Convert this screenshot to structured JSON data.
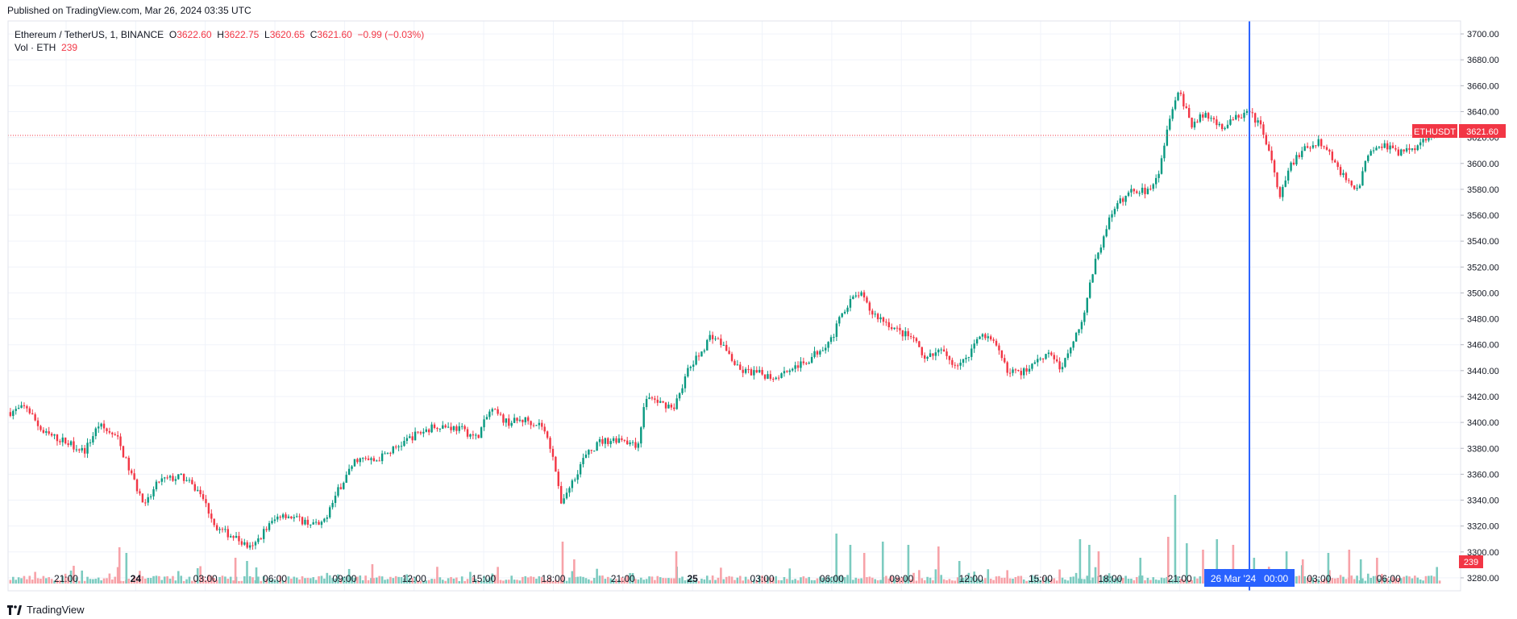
{
  "published": "Published on TradingView.com, Mar 26, 2024 03:35 UTC",
  "brand": "TradingView",
  "legend": {
    "symbol": "Ethereum / TetherUS, 1, BINANCE",
    "o_label": "O",
    "o": "3622.60",
    "h_label": "H",
    "h": "3622.75",
    "l_label": "L",
    "l": "3620.65",
    "c_label": "C",
    "c": "3621.60",
    "change": "−0.99 (−0.03%)",
    "vol_label": "Vol · ETH",
    "vol": "239"
  },
  "price_tag": {
    "symbol": "ETHUSDT",
    "value": "3621.60"
  },
  "volume_tag": "239",
  "crosshair_label": "26 Mar '24   00:00",
  "colors": {
    "up": "#089981",
    "down": "#f23645",
    "vol_up": "#7ccbc0",
    "vol_down": "#f7a2a8",
    "crosshair": "#2962ff",
    "grid": "#f0f3fa"
  },
  "chart_data": {
    "type": "candlestick",
    "symbol": "ETHUSDT",
    "interval": "1 minute",
    "ylim": [
      3270,
      3710
    ],
    "y_ticks": [
      "3280.00",
      "3300.00",
      "3320.00",
      "3340.00",
      "3360.00",
      "3380.00",
      "3400.00",
      "3420.00",
      "3440.00",
      "3460.00",
      "3480.00",
      "3500.00",
      "3520.00",
      "3540.00",
      "3560.00",
      "3580.00",
      "3600.00",
      "3620.00",
      "3640.00",
      "3660.00",
      "3680.00",
      "3700.00"
    ],
    "x_ticks": [
      {
        "label": "21:00",
        "t": 2
      },
      {
        "label": "24",
        "t": 5
      },
      {
        "label": "03:00",
        "t": 8
      },
      {
        "label": "06:00",
        "t": 11
      },
      {
        "label": "09:00",
        "t": 14
      },
      {
        "label": "12:00",
        "t": 17
      },
      {
        "label": "15:00",
        "t": 20
      },
      {
        "label": "18:00",
        "t": 23
      },
      {
        "label": "21:00",
        "t": 26
      },
      {
        "label": "25",
        "t": 29
      },
      {
        "label": "03:00",
        "t": 32
      },
      {
        "label": "06:00",
        "t": 35
      },
      {
        "label": "09:00",
        "t": 38
      },
      {
        "label": "12:00",
        "t": 41
      },
      {
        "label": "15:00",
        "t": 44
      },
      {
        "label": "18:00",
        "t": 47
      },
      {
        "label": "21:00",
        "t": 50
      },
      {
        "label": "03:00",
        "t": 56
      },
      {
        "label": "06:00",
        "t": 59
      }
    ],
    "bold_ticks": [
      "24",
      "25"
    ],
    "xlim": [
      -0.5,
      62.1
    ],
    "last_price": 3621.6,
    "crosshair_t": 53.0,
    "price_path": [
      [
        -0.4,
        3408
      ],
      [
        0.3,
        3412
      ],
      [
        1,
        3392
      ],
      [
        2,
        3385
      ],
      [
        2.8,
        3378
      ],
      [
        3.4,
        3398
      ],
      [
        4.2,
        3388
      ],
      [
        4.8,
        3360
      ],
      [
        5.4,
        3335
      ],
      [
        6,
        3355
      ],
      [
        7,
        3358
      ],
      [
        7.8,
        3345
      ],
      [
        8.5,
        3318
      ],
      [
        9.2,
        3312
      ],
      [
        10,
        3302
      ],
      [
        10.6,
        3318
      ],
      [
        11.3,
        3330
      ],
      [
        12,
        3325
      ],
      [
        13,
        3320
      ],
      [
        13.8,
        3350
      ],
      [
        14.5,
        3372
      ],
      [
        15.3,
        3370
      ],
      [
        16,
        3378
      ],
      [
        17,
        3390
      ],
      [
        18,
        3398
      ],
      [
        19,
        3395
      ],
      [
        19.7,
        3388
      ],
      [
        20.3,
        3410
      ],
      [
        21,
        3400
      ],
      [
        21.8,
        3402
      ],
      [
        22.5,
        3398
      ],
      [
        23,
        3375
      ],
      [
        23.3,
        3338
      ],
      [
        23.7,
        3350
      ],
      [
        24.3,
        3372
      ],
      [
        25,
        3385
      ],
      [
        26,
        3388
      ],
      [
        26.6,
        3380
      ],
      [
        27,
        3420
      ],
      [
        27.6,
        3415
      ],
      [
        28.2,
        3412
      ],
      [
        28.8,
        3440
      ],
      [
        29.4,
        3455
      ],
      [
        29.8,
        3468
      ],
      [
        30.3,
        3460
      ],
      [
        31,
        3440
      ],
      [
        31.8,
        3438
      ],
      [
        32.5,
        3435
      ],
      [
        33.2,
        3442
      ],
      [
        33.8,
        3445
      ],
      [
        34.4,
        3455
      ],
      [
        35,
        3465
      ],
      [
        35.6,
        3490
      ],
      [
        36.2,
        3500
      ],
      [
        36.7,
        3485
      ],
      [
        37.3,
        3478
      ],
      [
        37.9,
        3470
      ],
      [
        38.5,
        3465
      ],
      [
        39,
        3448
      ],
      [
        39.7,
        3455
      ],
      [
        40.3,
        3445
      ],
      [
        40.8,
        3448
      ],
      [
        41.4,
        3470
      ],
      [
        42,
        3460
      ],
      [
        42.6,
        3440
      ],
      [
        43.2,
        3438
      ],
      [
        43.8,
        3448
      ],
      [
        44.4,
        3455
      ],
      [
        44.9,
        3440
      ],
      [
        45.3,
        3460
      ],
      [
        45.8,
        3480
      ],
      [
        46.3,
        3520
      ],
      [
        46.9,
        3555
      ],
      [
        47.4,
        3570
      ],
      [
        48,
        3580
      ],
      [
        48.6,
        3578
      ],
      [
        49.1,
        3595
      ],
      [
        49.6,
        3640
      ],
      [
        50,
        3655
      ],
      [
        50.5,
        3630
      ],
      [
        51.1,
        3638
      ],
      [
        51.8,
        3628
      ],
      [
        52.4,
        3635
      ],
      [
        53,
        3640
      ],
      [
        53.6,
        3625
      ],
      [
        54,
        3598
      ],
      [
        54.3,
        3572
      ],
      [
        54.8,
        3600
      ],
      [
        55.4,
        3612
      ],
      [
        56,
        3618
      ],
      [
        56.6,
        3604
      ],
      [
        57.2,
        3585
      ],
      [
        57.7,
        3582
      ],
      [
        58.2,
        3612
      ],
      [
        58.8,
        3615
      ],
      [
        59.4,
        3608
      ],
      [
        60,
        3612
      ],
      [
        60.4,
        3616
      ],
      [
        60.8,
        3625
      ],
      [
        61.2,
        3622
      ]
    ],
    "volume_spikes": [
      [
        4.3,
        45,
        "down"
      ],
      [
        4.6,
        38,
        "up"
      ],
      [
        9.3,
        32,
        "down"
      ],
      [
        9.8,
        28,
        "up"
      ],
      [
        10.2,
        20,
        "up"
      ],
      [
        15.2,
        24,
        "down"
      ],
      [
        23.4,
        52,
        "down"
      ],
      [
        23.9,
        30,
        "down"
      ],
      [
        28.3,
        40,
        "down"
      ],
      [
        35.2,
        62,
        "up"
      ],
      [
        35.8,
        48,
        "up"
      ],
      [
        36.4,
        38,
        "down"
      ],
      [
        37.2,
        52,
        "up"
      ],
      [
        38.3,
        48,
        "up"
      ],
      [
        39.6,
        46,
        "down"
      ],
      [
        40.5,
        28,
        "up"
      ],
      [
        45.7,
        55,
        "up"
      ],
      [
        46.1,
        48,
        "up"
      ],
      [
        46.5,
        40,
        "down"
      ],
      [
        48.3,
        32,
        "up"
      ],
      [
        49.5,
        58,
        "down"
      ],
      [
        49.8,
        110,
        "up"
      ],
      [
        50.3,
        50,
        "up"
      ],
      [
        51,
        42,
        "down"
      ],
      [
        51.6,
        55,
        "up"
      ],
      [
        52.3,
        48,
        "down"
      ],
      [
        53.2,
        32,
        "up"
      ],
      [
        54.6,
        40,
        "up"
      ],
      [
        55.3,
        30,
        "down"
      ],
      [
        56.4,
        38,
        "up"
      ],
      [
        57.3,
        42,
        "down"
      ],
      [
        57.8,
        30,
        "up"
      ],
      [
        58.5,
        32,
        "down"
      ]
    ]
  }
}
